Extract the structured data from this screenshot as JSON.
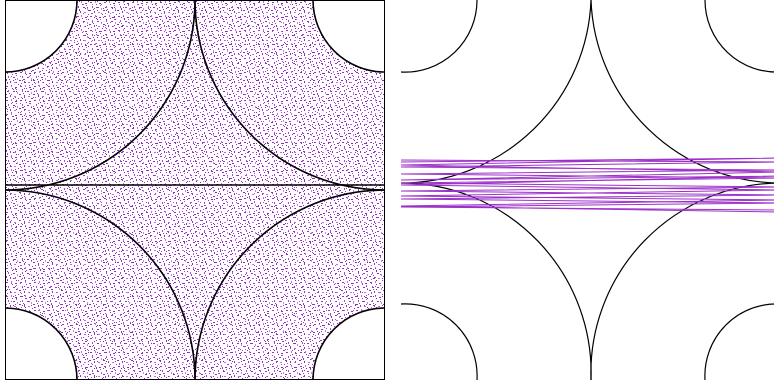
{
  "figure": {
    "panels": [
      {
        "id": "left",
        "content": "uniform-ergodic-fill"
      },
      {
        "id": "right",
        "content": "trajectory-lines"
      }
    ]
  },
  "colors": {
    "background": "#ffffff",
    "boundary": "#000000",
    "trajectory": "#9b30c8"
  },
  "geometry": {
    "type": "sinai-billiard-tiling",
    "arc_shape": "quarter-circle-concave-walls",
    "corner_discs": 4
  },
  "right_panel": {
    "trajectory_bounces": 8
  },
  "left_panel": {
    "fill_style": "dense-random-dots"
  }
}
